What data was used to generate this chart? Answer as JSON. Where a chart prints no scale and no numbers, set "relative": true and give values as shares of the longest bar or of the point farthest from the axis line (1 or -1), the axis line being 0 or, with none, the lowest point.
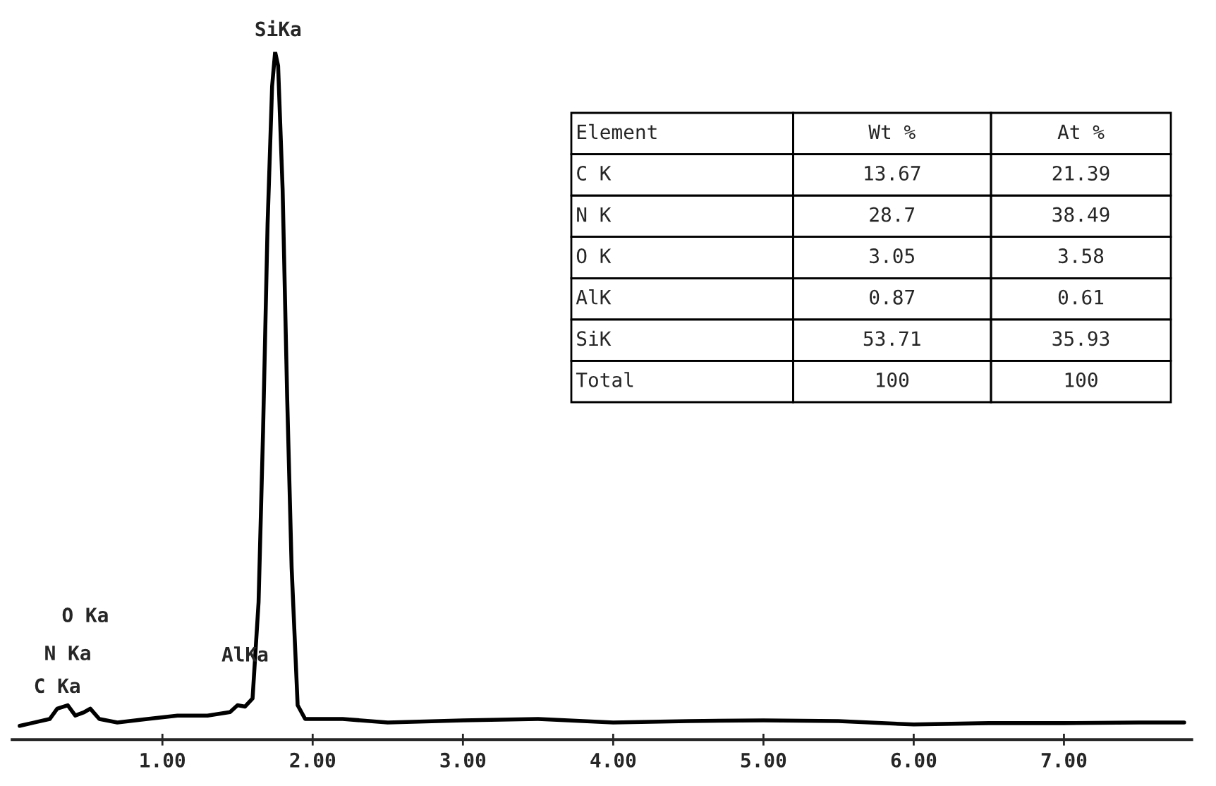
{
  "chart_data": [
    {
      "type": "line",
      "relative": true,
      "color": "#000000",
      "marker": "none",
      "line_style": "solid",
      "grid": false,
      "legend": false,
      "tick_labels": "x",
      "xlim": [
        0,
        7.85
      ],
      "xticks": [
        {
          "value": 1,
          "label": "1.00"
        },
        {
          "value": 2,
          "label": "2.00"
        },
        {
          "value": 3,
          "label": "3.00"
        },
        {
          "value": 4,
          "label": "4.00"
        },
        {
          "value": 5,
          "label": "5.00"
        },
        {
          "value": 6,
          "label": "6.00"
        },
        {
          "value": 7,
          "label": "7.00"
        }
      ],
      "x": [
        0.05,
        0.15,
        0.25,
        0.3,
        0.37,
        0.42,
        0.48,
        0.52,
        0.58,
        0.7,
        0.9,
        1.1,
        1.3,
        1.45,
        1.5,
        1.55,
        1.6,
        1.64,
        1.67,
        1.7,
        1.73,
        1.75,
        1.77,
        1.8,
        1.83,
        1.86,
        1.9,
        1.95,
        2.2,
        2.5,
        3.0,
        3.5,
        4.0,
        4.5,
        5.0,
        5.5,
        6.0,
        6.5,
        7.0,
        7.5,
        7.8
      ],
      "values": [
        0.02,
        0.025,
        0.03,
        0.045,
        0.05,
        0.035,
        0.04,
        0.045,
        0.03,
        0.025,
        0.03,
        0.035,
        0.035,
        0.04,
        0.05,
        0.048,
        0.06,
        0.2,
        0.45,
        0.75,
        0.95,
        1.0,
        0.98,
        0.8,
        0.5,
        0.25,
        0.05,
        0.03,
        0.03,
        0.025,
        0.028,
        0.03,
        0.025,
        0.027,
        0.028,
        0.027,
        0.022,
        0.024,
        0.024,
        0.025,
        0.025
      ],
      "annotations": [
        {
          "text": "SiKa",
          "x": 1.77,
          "y": 1.0
        },
        {
          "text": "C Ka",
          "x": 0.3,
          "y": 0.045
        },
        {
          "text": "N Ka",
          "x": 0.37,
          "y": 0.05
        },
        "O Ka",
        {
          "text": "AlKa",
          "x": 1.55,
          "y": 0.048
        }
      ]
    },
    {
      "type": "other",
      "annotations": [
        "Element",
        "Wt %",
        "At %",
        "C K",
        "13.67",
        "21.39",
        "N K",
        "28.7",
        "38.49",
        "O K",
        "3.05",
        "3.58",
        "AlK",
        "0.87",
        "0.61",
        "SiK",
        "53.71",
        "35.93",
        "Total",
        "100",
        "100"
      ]
    }
  ]
}
